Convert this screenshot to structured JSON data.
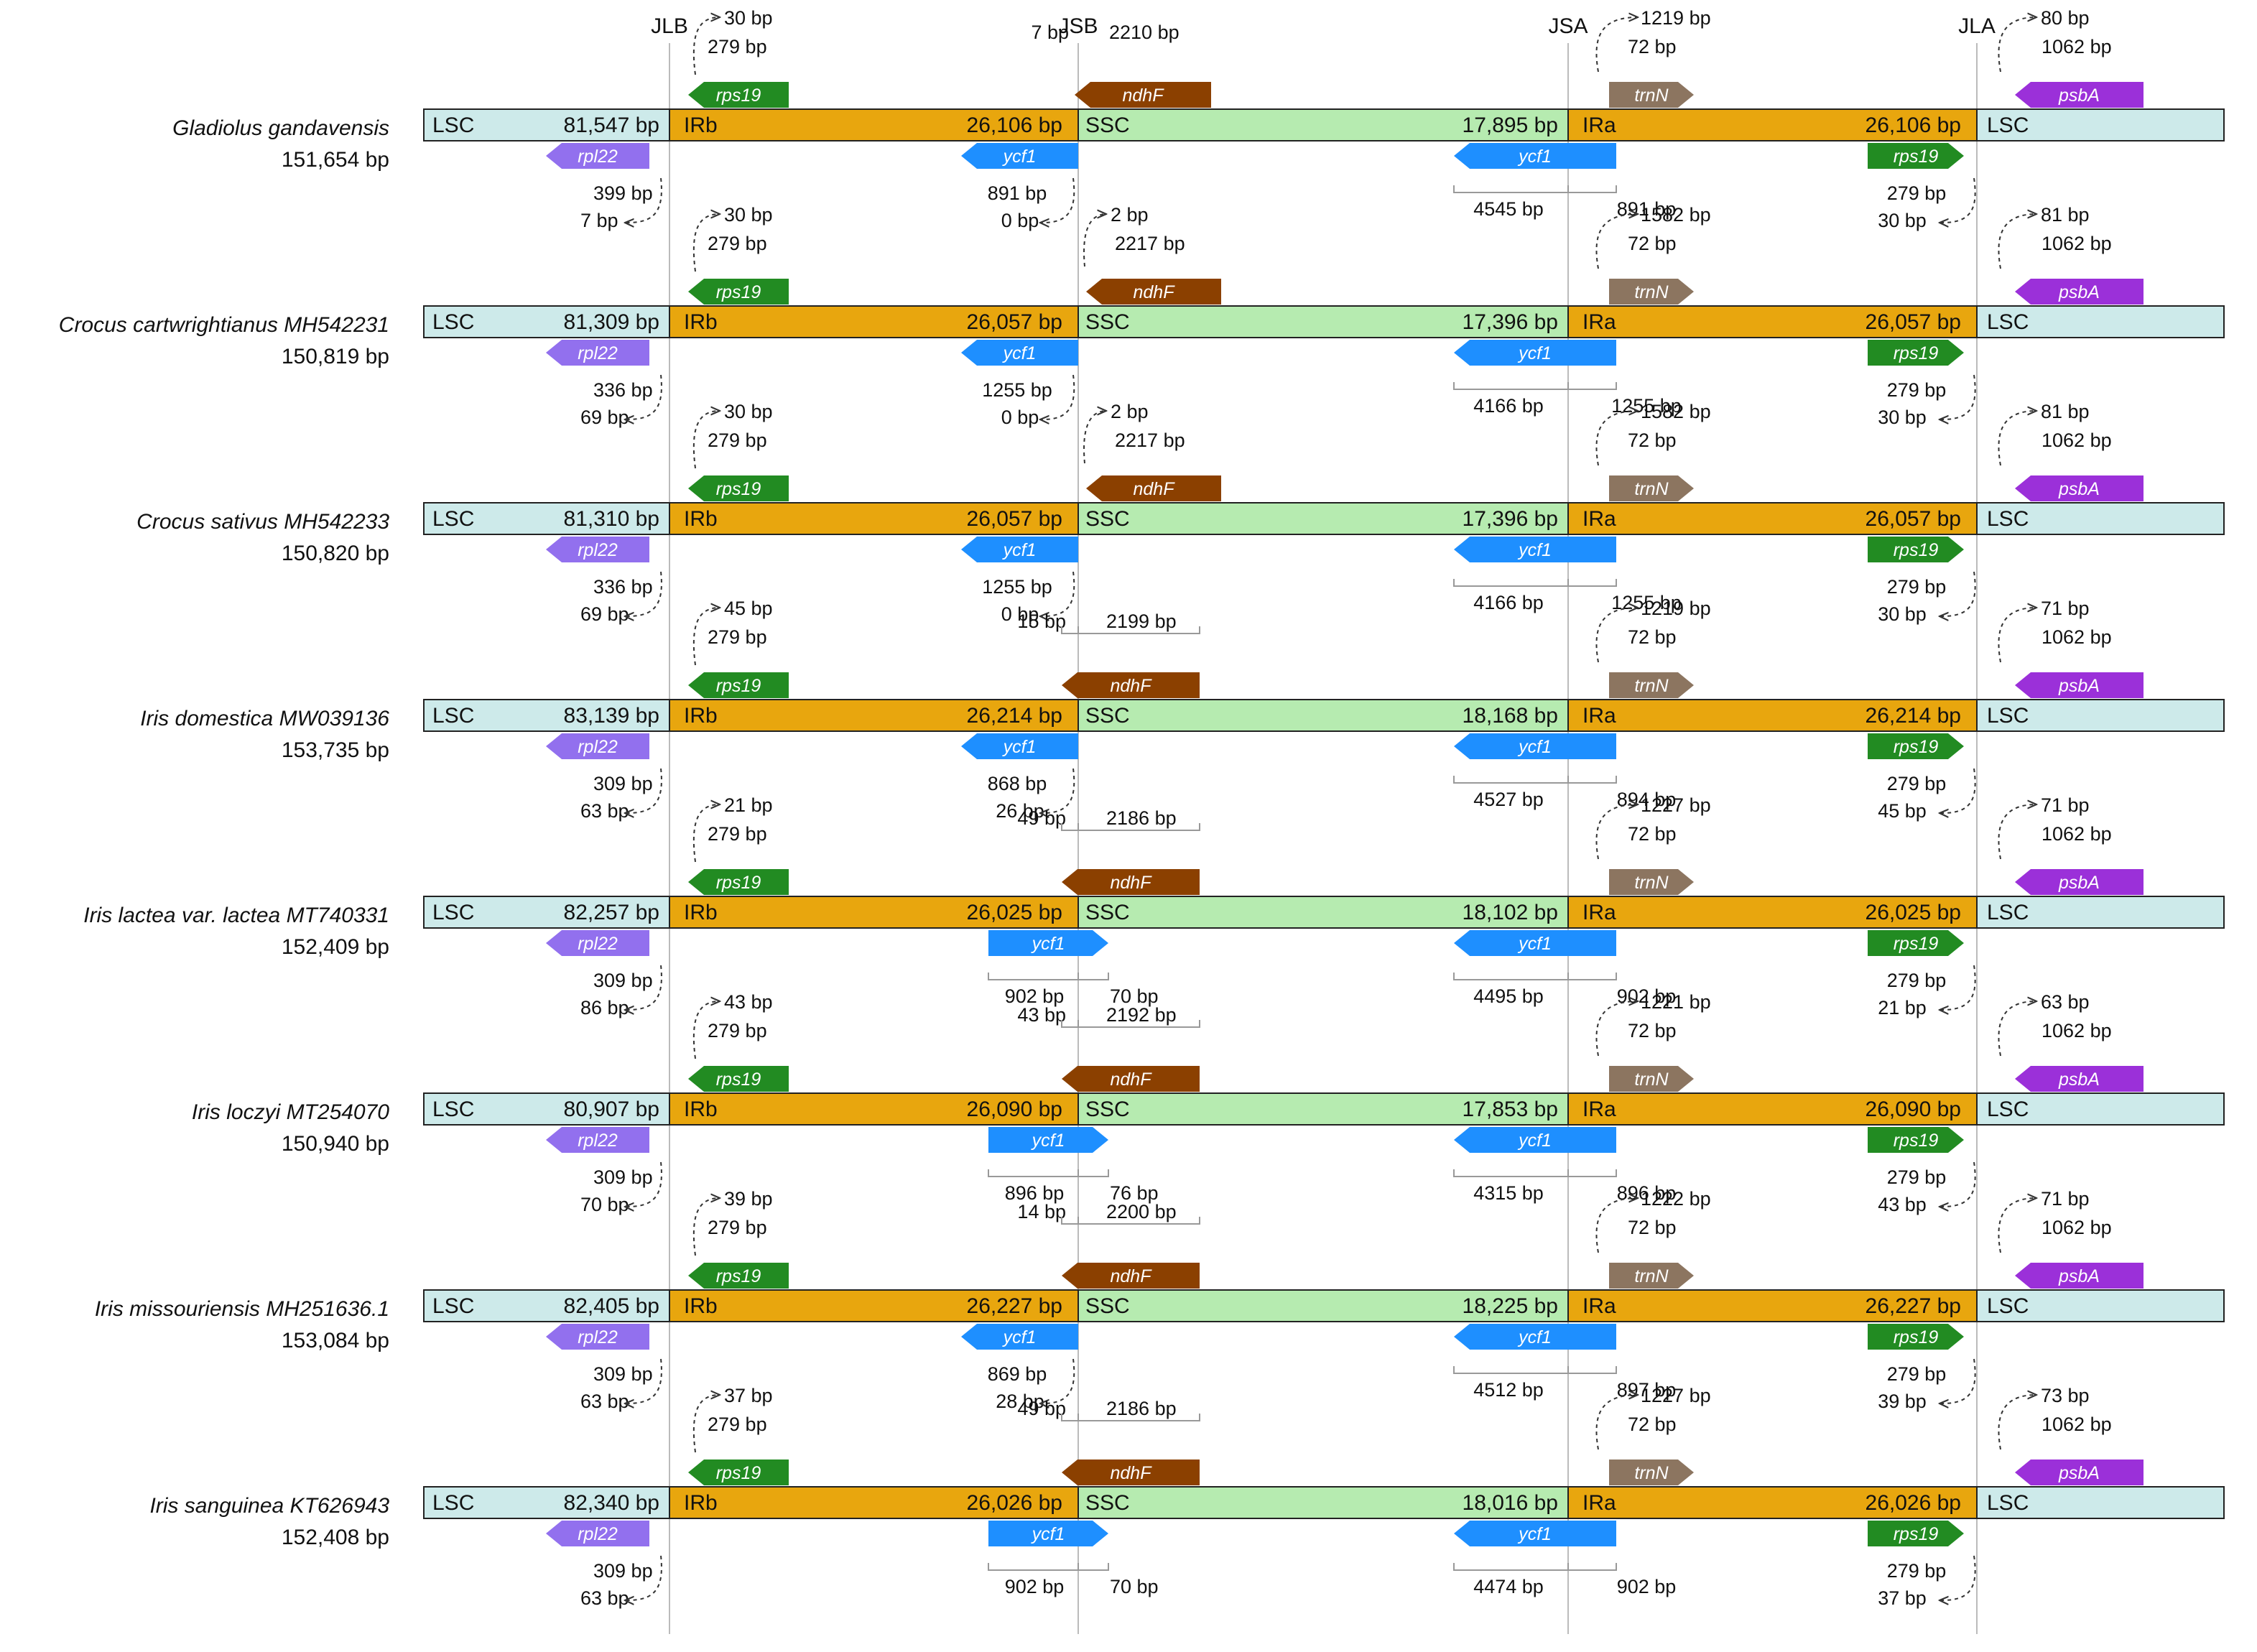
{
  "junctions": [
    "JLB",
    "JSB",
    "JSA",
    "JLA"
  ],
  "regions": {
    "lsc": "LSC",
    "irb": "IRb",
    "ssc": "SSC",
    "ira": "IRa"
  },
  "colors": {
    "lsc": "#cdeaea",
    "ir": "#e8a60e",
    "ssc": "#b6ebb0",
    "rps19": "#228b22",
    "rpl22": "#9270ee",
    "ycf1": "#1e8fff",
    "ndhF": "#8b4000",
    "trnN": "#8c7560",
    "psbA": "#9b30d9"
  },
  "species": [
    {
      "name": "Gladiolus gandavensis",
      "length": "151,654 bp",
      "lsc": "81,547 bp",
      "ir": "26,106 bp",
      "ssc": "17,895 bp",
      "ndhf_cross": false,
      "rps19_ext": "30 bp",
      "rps19_len": "279 bp",
      "rpl22_len": "399 bp",
      "rpl22_gap": "7 bp",
      "ndhf_left": "7 bp",
      "ndhf_right": "2210 bp",
      "ycf1b_a": "891 bp",
      "ycf1b_b": "0 bp",
      "ycf1a_left": "4545 bp",
      "ycf1a_right": "891 bp",
      "trnn_dist": "1219 bp",
      "trnn_len": "72 bp",
      "rps19a_len": "279 bp",
      "rps19a_ext": "30 bp",
      "psba_dist": "80 bp",
      "psba_len": "1062 bp"
    },
    {
      "name": "Crocus cartwrightianus MH542231",
      "length": "150,819 bp",
      "lsc": "81,309 bp",
      "ir": "26,057 bp",
      "ssc": "17,396 bp",
      "ndhf_cross": false,
      "rps19_ext": "30 bp",
      "rps19_len": "279 bp",
      "rpl22_len": "336 bp",
      "rpl22_gap": "69 bp",
      "ndhf_left": "2 bp",
      "ndhf_right": "2217 bp",
      "ycf1b_a": "1255 bp",
      "ycf1b_b": "0 bp",
      "ycf1a_left": "4166 bp",
      "ycf1a_right": "1255 bp",
      "trnn_dist": "1582 bp",
      "trnn_len": "72 bp",
      "rps19a_len": "279 bp",
      "rps19a_ext": "30 bp",
      "psba_dist": "81 bp",
      "psba_len": "1062 bp"
    },
    {
      "name": "Crocus sativus MH542233",
      "length": "150,820 bp",
      "lsc": "81,310 bp",
      "ir": "26,057 bp",
      "ssc": "17,396 bp",
      "ndhf_cross": false,
      "rps19_ext": "30 bp",
      "rps19_len": "279 bp",
      "rpl22_len": "336 bp",
      "rpl22_gap": "69 bp",
      "ndhf_left": "2 bp",
      "ndhf_right": "2217 bp",
      "ycf1b_a": "1255 bp",
      "ycf1b_b": "0 bp",
      "ycf1a_left": "4166 bp",
      "ycf1a_right": "1255 bp",
      "trnn_dist": "1582 bp",
      "trnn_len": "72 bp",
      "rps19a_len": "279 bp",
      "rps19a_ext": "30 bp",
      "psba_dist": "81 bp",
      "psba_len": "1062 bp"
    },
    {
      "name": "Iris domestica MW039136",
      "length": "153,735 bp",
      "lsc": "83,139 bp",
      "ir": "26,214 bp",
      "ssc": "18,168 bp",
      "ndhf_cross": true,
      "rps19_ext": "45 bp",
      "rps19_len": "279 bp",
      "rpl22_len": "309 bp",
      "rpl22_gap": "63 bp",
      "ndhf_left": "15 bp",
      "ndhf_right": "2199 bp",
      "ycf1b_a": "868 bp",
      "ycf1b_b": "26 bp",
      "ycf1a_left": "4527 bp",
      "ycf1a_right": "894 bp",
      "trnn_dist": "1219 bp",
      "trnn_len": "72 bp",
      "rps19a_len": "279 bp",
      "rps19a_ext": "45 bp",
      "psba_dist": "71 bp",
      "psba_len": "1062 bp"
    },
    {
      "name": "Iris lactea var. lactea MT740331",
      "length": "152,409 bp",
      "lsc": "82,257 bp",
      "ir": "26,025 bp",
      "ssc": "18,102 bp",
      "ndhf_cross": true,
      "rps19_ext": "21 bp",
      "rps19_len": "279 bp",
      "rpl22_len": "309 bp",
      "rpl22_gap": "86 bp",
      "ndhf_left": "49 bp",
      "ndhf_right": "2186 bp",
      "ycf1b_a": "902 bp",
      "ycf1b_b": "70 bp",
      "ycf1a_left": "4495 bp",
      "ycf1a_right": "902 bp",
      "trnn_dist": "1227 bp",
      "trnn_len": "72 bp",
      "rps19a_len": "279 bp",
      "rps19a_ext": "21 bp",
      "psba_dist": "71 bp",
      "psba_len": "1062 bp"
    },
    {
      "name": "Iris loczyi MT254070",
      "length": "150,940 bp",
      "lsc": "80,907 bp",
      "ir": "26,090 bp",
      "ssc": "17,853 bp",
      "ndhf_cross": true,
      "rps19_ext": "43 bp",
      "rps19_len": "279 bp",
      "rpl22_len": "309 bp",
      "rpl22_gap": "70 bp",
      "ndhf_left": "43 bp",
      "ndhf_right": "2192 bp",
      "ycf1b_a": "896 bp",
      "ycf1b_b": "76 bp",
      "ycf1a_left": "4315 bp",
      "ycf1a_right": "896 bp",
      "trnn_dist": "1221 bp",
      "trnn_len": "72 bp",
      "rps19a_len": "279 bp",
      "rps19a_ext": "43 bp",
      "psba_dist": "63 bp",
      "psba_len": "1062 bp"
    },
    {
      "name": "Iris missouriensis MH251636.1",
      "length": "153,084 bp",
      "lsc": "82,405 bp",
      "ir": "26,227 bp",
      "ssc": "18,225 bp",
      "ndhf_cross": true,
      "rps19_ext": "39 bp",
      "rps19_len": "279 bp",
      "rpl22_len": "309 bp",
      "rpl22_gap": "63 bp",
      "ndhf_left": "14 bp",
      "ndhf_right": "2200 bp",
      "ycf1b_a": "869 bp",
      "ycf1b_b": "28 bp",
      "ycf1a_left": "4512 bp",
      "ycf1a_right": "897 bp",
      "trnn_dist": "1222 bp",
      "trnn_len": "72 bp",
      "rps19a_len": "279 bp",
      "rps19a_ext": "39 bp",
      "psba_dist": "71 bp",
      "psba_len": "1062 bp"
    },
    {
      "name": "Iris sanguinea KT626943",
      "length": "152,408 bp",
      "lsc": "82,340 bp",
      "ir": "26,026 bp",
      "ssc": "18,016 bp",
      "ndhf_cross": true,
      "rps19_ext": "37 bp",
      "rps19_len": "279 bp",
      "rpl22_len": "309 bp",
      "rpl22_gap": "63 bp",
      "ndhf_left": "49 bp",
      "ndhf_right": "2186 bp",
      "ycf1b_a": "902 bp",
      "ycf1b_b": "70 bp",
      "ycf1a_left": "4474 bp",
      "ycf1a_right": "902 bp",
      "trnn_dist": "1227 bp",
      "trnn_len": "72 bp",
      "rps19a_len": "279 bp",
      "rps19a_ext": "37 bp",
      "psba_dist": "73 bp",
      "psba_len": "1062 bp"
    }
  ]
}
